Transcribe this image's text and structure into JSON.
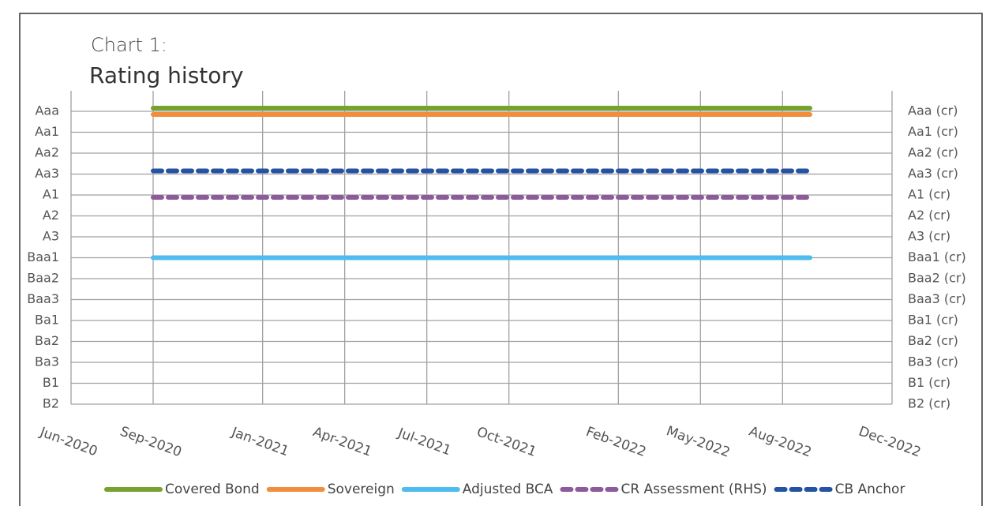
{
  "chart_data": {
    "type": "line",
    "title": "Chart 1:",
    "subtitle": "Rating history",
    "x": [
      "Sep-2020",
      "Sep-2022"
    ],
    "xlim": [
      "Jun-2020",
      "Dec-2022"
    ],
    "xticks": [
      "Jun-2020",
      "Sep-2020",
      "Jan-2021",
      "Apr-2021",
      "Jul-2021",
      "Oct-2021",
      "Feb-2022",
      "May-2022",
      "Aug-2022",
      "Dec-2022"
    ],
    "ylim": [
      15,
      1
    ],
    "yticks": [
      {
        "value": 1,
        "label": "Aaa"
      },
      {
        "value": 2,
        "label": "Aa1"
      },
      {
        "value": 3,
        "label": "Aa2"
      },
      {
        "value": 4,
        "label": "Aa3"
      },
      {
        "value": 5,
        "label": "A1"
      },
      {
        "value": 6,
        "label": "A2"
      },
      {
        "value": 7,
        "label": "A3"
      },
      {
        "value": 8,
        "label": "Baa1"
      },
      {
        "value": 9,
        "label": "Baa2"
      },
      {
        "value": 10,
        "label": "Baa3"
      },
      {
        "value": 11,
        "label": "Ba1"
      },
      {
        "value": 12,
        "label": "Ba2"
      },
      {
        "value": 13,
        "label": "Ba3"
      },
      {
        "value": 14,
        "label": "B1"
      },
      {
        "value": 15,
        "label": "B2"
      }
    ],
    "y2lim": [
      15,
      1
    ],
    "y2ticks": [
      {
        "value": 1,
        "label": "Aaa (cr)"
      },
      {
        "value": 2,
        "label": "Aa1 (cr)"
      },
      {
        "value": 3,
        "label": "Aa2 (cr)"
      },
      {
        "value": 4,
        "label": "Aa3 (cr)"
      },
      {
        "value": 5,
        "label": "A1 (cr)"
      },
      {
        "value": 6,
        "label": "A2 (cr)"
      },
      {
        "value": 7,
        "label": "A3 (cr)"
      },
      {
        "value": 8,
        "label": "Baa1 (cr)"
      },
      {
        "value": 9,
        "label": "Baa2 (cr)"
      },
      {
        "value": 10,
        "label": "Baa3 (cr)"
      },
      {
        "value": 11,
        "label": "Ba1 (cr)"
      },
      {
        "value": 12,
        "label": "Ba2 (cr)"
      },
      {
        "value": 13,
        "label": "Ba3 (cr)"
      },
      {
        "value": 14,
        "label": "B1 (cr)"
      },
      {
        "value": 15,
        "label": "B2 (cr)"
      }
    ],
    "grid": true,
    "legend": "bottom",
    "series": [
      {
        "name": "Covered Bond",
        "color": "#78a22f",
        "style": "solid",
        "values": [
          1,
          1
        ]
      },
      {
        "name": "Sovereign",
        "color": "#f28e3b",
        "style": "solid",
        "values": [
          1,
          1
        ]
      },
      {
        "name": "Adjusted BCA",
        "color": "#4fbcee",
        "style": "solid",
        "values": [
          8,
          8
        ]
      },
      {
        "name": "CR Assessment (RHS)",
        "color": "#8d5a9c",
        "style": "dashed",
        "axis": "y2",
        "values": [
          5,
          5
        ]
      },
      {
        "name": "CB Anchor",
        "color": "#2553a3",
        "style": "dashed",
        "values": [
          4,
          4
        ]
      }
    ]
  }
}
